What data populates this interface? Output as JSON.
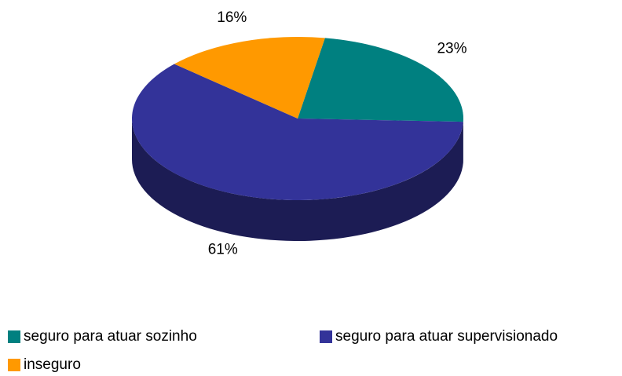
{
  "chart_data": {
    "type": "pie",
    "three_d": true,
    "categories": [
      "seguro para atuar sozinho",
      "seguro para atuar supervisionado",
      "inseguro"
    ],
    "values": [
      23,
      61,
      16
    ],
    "value_labels": [
      "23%",
      "61%",
      "16%"
    ],
    "colors": [
      "#008080",
      "#333399",
      "#ff9900"
    ],
    "legend": "bottom"
  }
}
